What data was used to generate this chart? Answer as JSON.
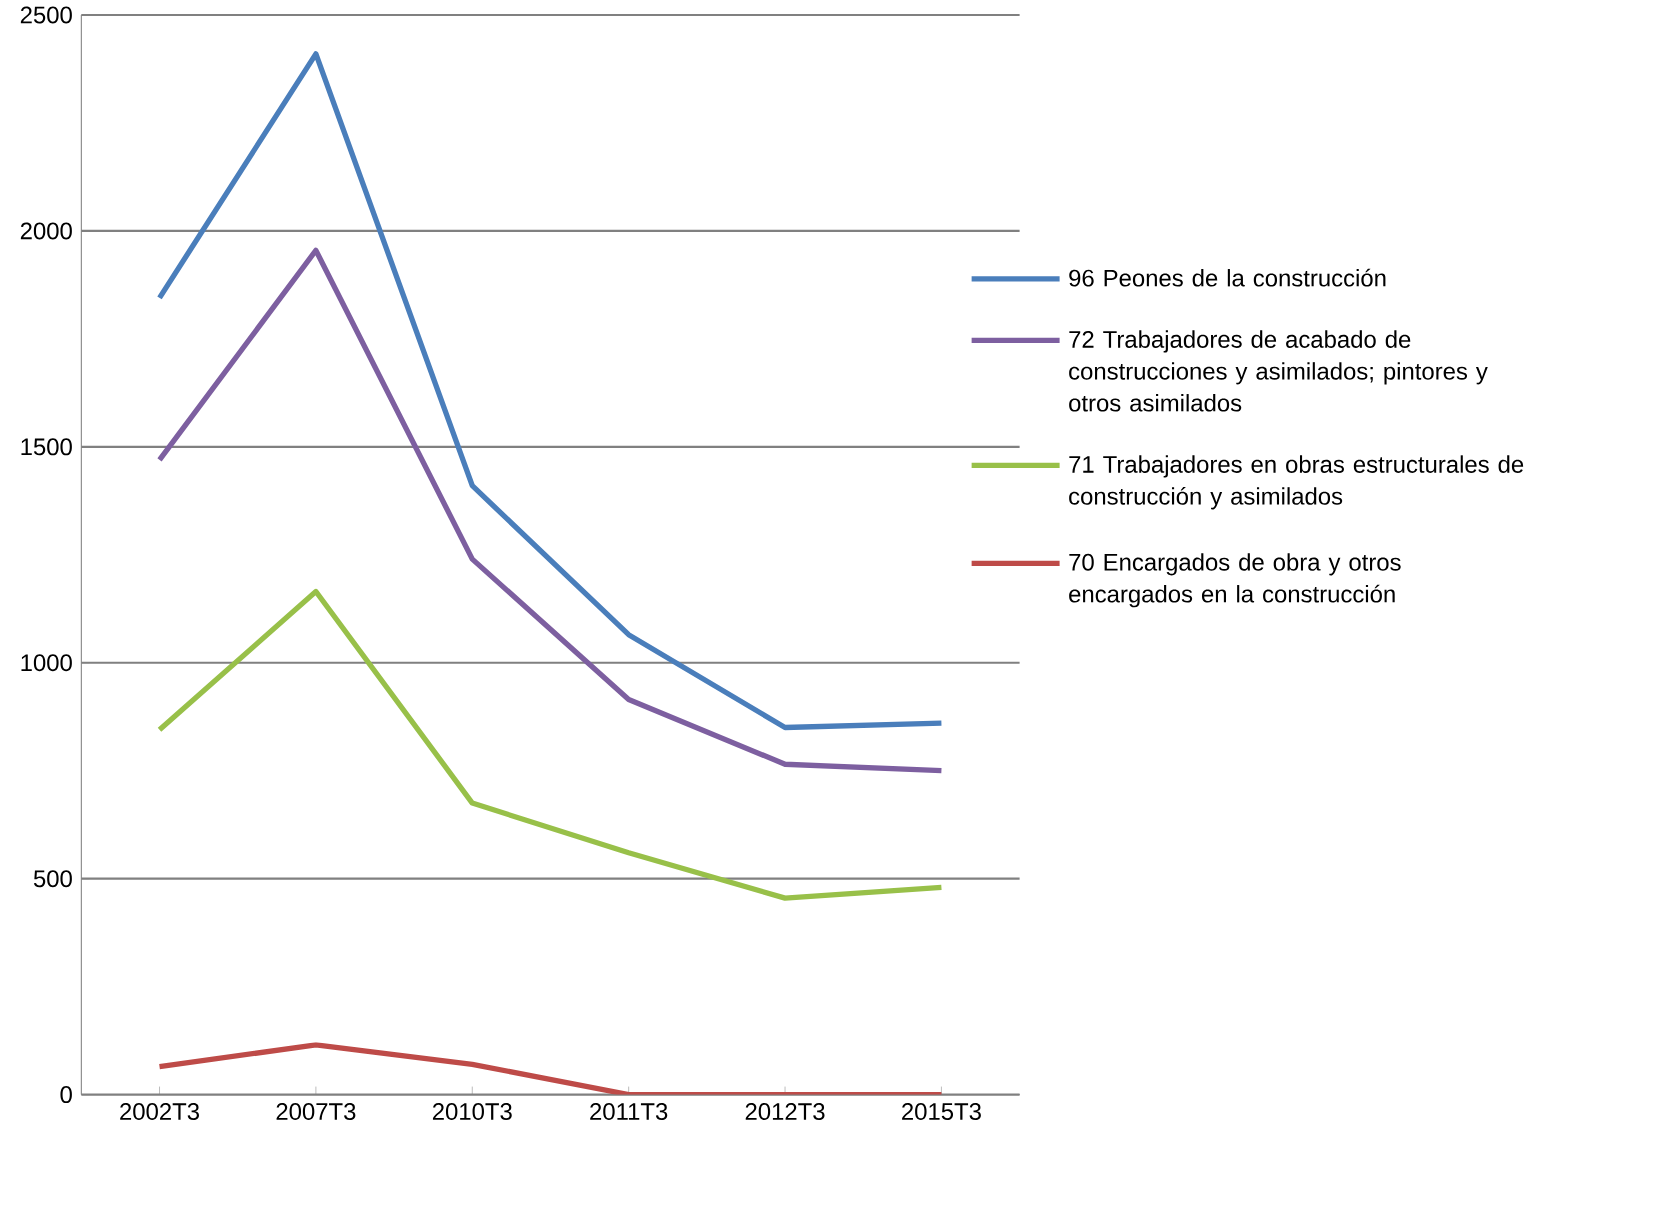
{
  "chart_data": {
    "type": "line",
    "categories": [
      "2002T3",
      "2007T3",
      "2010T3",
      "2011T3",
      "2012T3",
      "2015T3"
    ],
    "series": [
      {
        "name": "96 Peones de la construcción",
        "color": "#4a7ebb",
        "values": [
          1845,
          2410,
          1410,
          1065,
          850,
          860
        ]
      },
      {
        "name": "72 Trabajadores de acabado de construcciones y asimilados; pintores y otros asimilados",
        "color": "#7d5fa0",
        "values": [
          1470,
          1955,
          1240,
          915,
          765,
          750
        ]
      },
      {
        "name": "71 Trabajadores en obras estructurales de construcción y asimilados",
        "color": "#98c049",
        "values": [
          845,
          1165,
          675,
          560,
          455,
          480
        ]
      },
      {
        "name": "70 Encargados de obra y otros encargados en la construcción",
        "color": "#be4b48",
        "values": [
          65,
          115,
          70,
          0,
          0,
          0
        ]
      }
    ],
    "ylim": [
      0,
      2500
    ],
    "yticks": [
      0,
      500,
      1000,
      1500,
      2000,
      2500
    ],
    "grid": "y",
    "legend": "right",
    "marker": "none",
    "line_style": "solid"
  }
}
